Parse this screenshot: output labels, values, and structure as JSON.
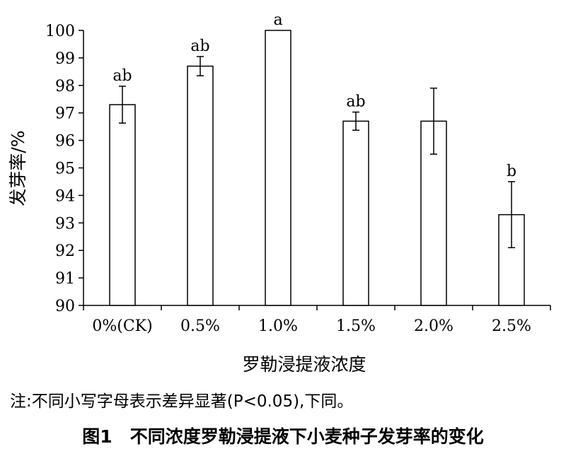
{
  "chart_data": {
    "type": "bar",
    "categories": [
      "0%(CK)",
      "0.5%",
      "1.0%",
      "1.5%",
      "2.0%",
      "2.5%"
    ],
    "values": [
      97.3,
      98.7,
      100.0,
      96.7,
      96.7,
      93.3
    ],
    "errors": [
      0.67,
      0.35,
      0.0,
      0.33,
      1.2,
      1.2
    ],
    "significance": [
      "ab",
      "ab",
      "a",
      "ab",
      "",
      "b"
    ],
    "xlabel": "罗勒浸提液浓度",
    "ylabel": "发芽率/%",
    "ylim": [
      90,
      100
    ],
    "yticks": [
      90,
      91,
      92,
      93,
      94,
      95,
      96,
      97,
      98,
      99,
      100
    ],
    "grid": false,
    "bar_fill": "#ffffff",
    "bar_stroke": "#000000"
  },
  "note": "注:不同小写字母表示差异显著(P<0.05),下同。",
  "caption": "图1　不同浓度罗勒浸提液下小麦种子发芽率的变化"
}
